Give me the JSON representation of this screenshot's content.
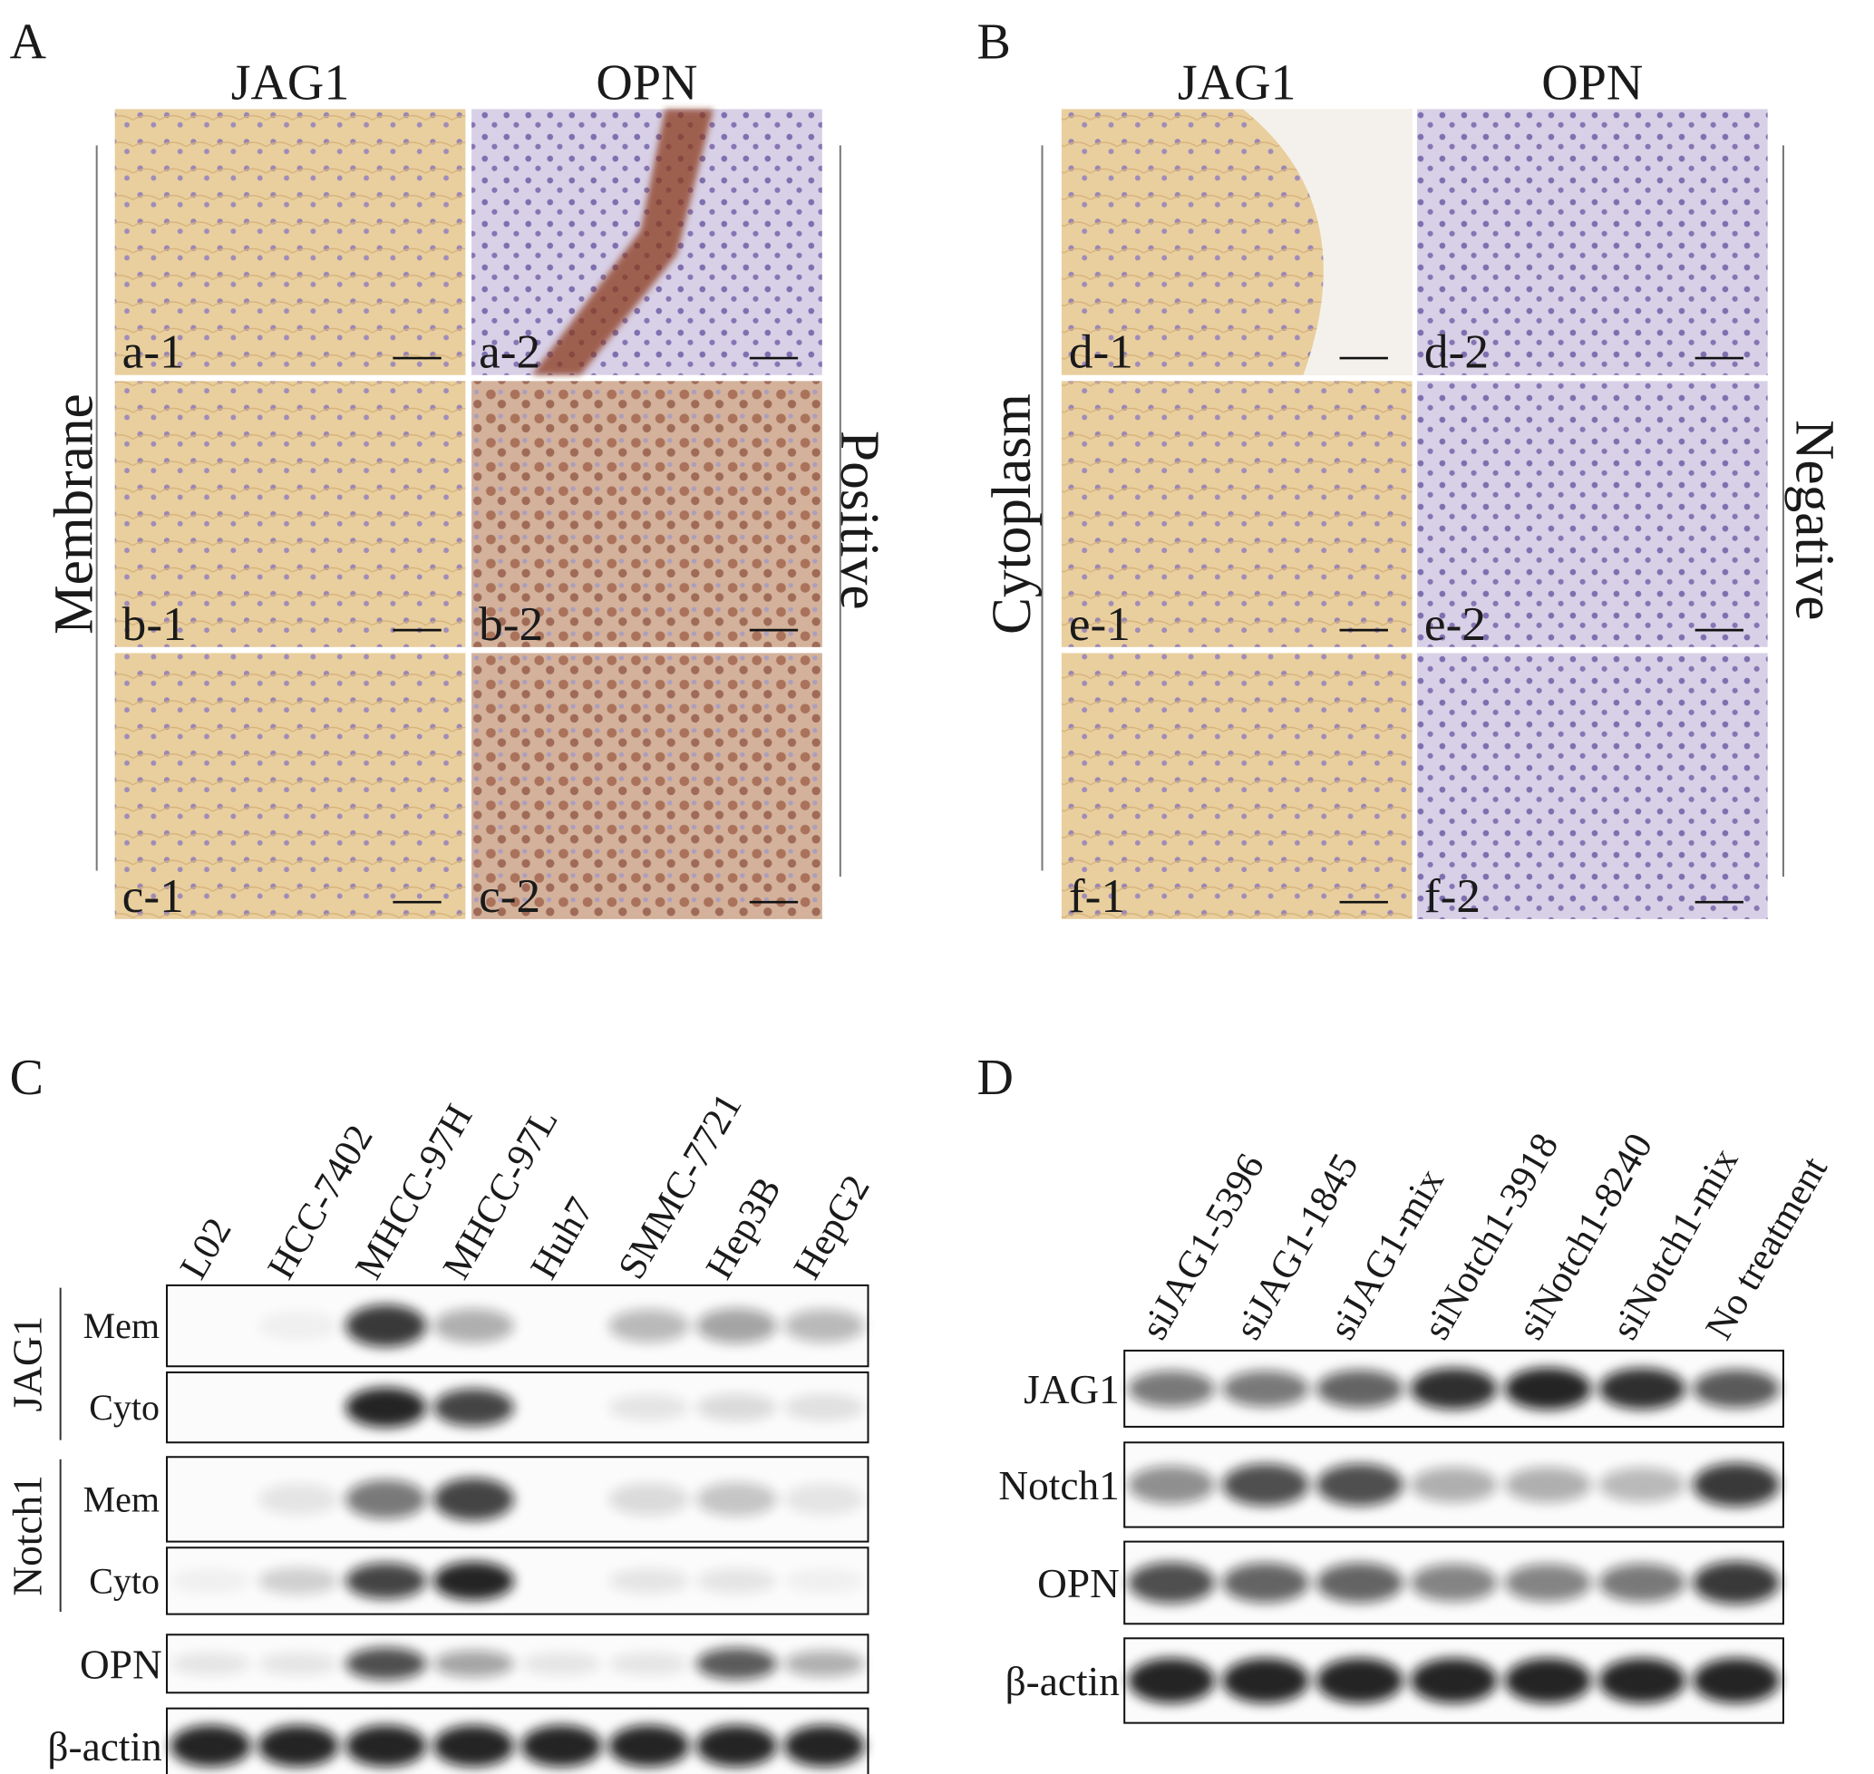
{
  "panels": [
    {
      "label": "A",
      "columns": [
        "JAG1",
        "OPN"
      ],
      "left_label": "Membrane",
      "right_label": "Positive",
      "tiles": [
        "a-1",
        "a-2",
        "b-1",
        "b-2",
        "c-1",
        "c-2"
      ]
    },
    {
      "label": "B",
      "columns": [
        "JAG1",
        "OPN"
      ],
      "left_label": "Cytoplasm",
      "right_label": "Negative",
      "tiles": [
        "d-1",
        "d-2",
        "e-1",
        "e-2",
        "f-1",
        "f-2"
      ]
    }
  ],
  "blots": [
    {
      "label": "C",
      "lanes": [
        "L02",
        "HCC-7402",
        "MHCC-97H",
        "MHCC-97L",
        "Huh7",
        "SMMC-7721",
        "Hep3B",
        "HepG2"
      ],
      "rows": [
        {
          "label": "JAG1",
          "sub": [
            "Mem",
            "Cyto"
          ]
        },
        {
          "label": "Notch1",
          "sub": [
            "Mem",
            "Cyto"
          ]
        },
        {
          "label": "OPN"
        },
        {
          "label": "β-actin"
        }
      ]
    },
    {
      "label": "D",
      "lanes": [
        "siJAG1-5396",
        "siJAG1-1845",
        "siJAG1-mix",
        "siNotch1-3918",
        "siNotch1-8240",
        "siNotch1-mix",
        "No treatment"
      ],
      "rows": [
        {
          "label": "JAG1"
        },
        {
          "label": "Notch1"
        },
        {
          "label": "OPN"
        },
        {
          "label": "β-actin"
        }
      ]
    }
  ]
}
